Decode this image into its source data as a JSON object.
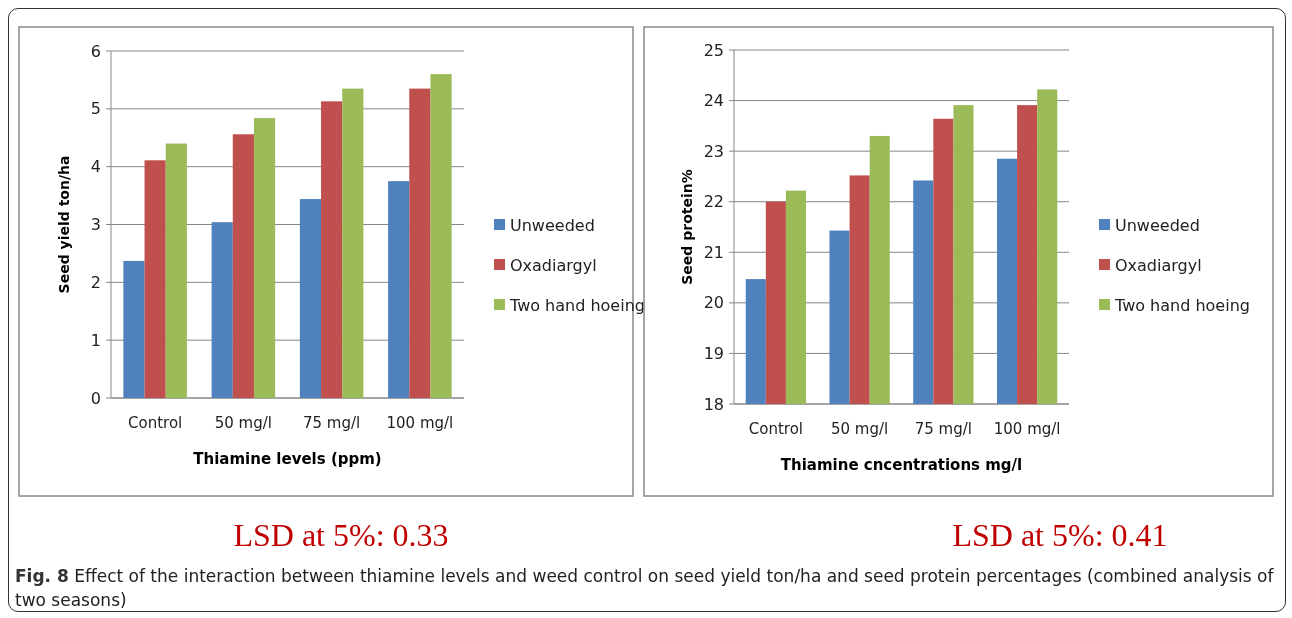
{
  "chart_data": [
    {
      "type": "bar",
      "xlabel": "Thiamine levels (ppm)",
      "ylabel": "Seed yield ton/ha",
      "categories": [
        "Control",
        "50 mg/l",
        "75 mg/l",
        "100 mg/l"
      ],
      "series": [
        {
          "name": "Unweeded",
          "color": "#4f81bd",
          "values": [
            2.37,
            3.04,
            3.44,
            3.75
          ]
        },
        {
          "name": "Oxadiargyl",
          "color": "#c0504d",
          "values": [
            4.11,
            4.56,
            5.13,
            5.35
          ]
        },
        {
          "name": "Two hand hoeing",
          "color": "#9bbb59",
          "values": [
            4.4,
            4.84,
            5.35,
            5.6
          ]
        }
      ],
      "ylim": [
        0,
        6
      ],
      "yticks": [
        0,
        1,
        2,
        3,
        4,
        5,
        6
      ],
      "grid": "y",
      "legend": "right",
      "annotations": [
        "LSD at 5%: 0.33"
      ]
    },
    {
      "type": "bar",
      "xlabel": "Thiamine cncentrations mg/l",
      "ylabel": "Seed protein%",
      "categories": [
        "Control",
        "50 mg/l",
        "75 mg/l",
        "100 mg/l"
      ],
      "series": [
        {
          "name": "Unweeded",
          "color": "#4f81bd",
          "values": [
            20.47,
            21.43,
            22.42,
            22.85
          ]
        },
        {
          "name": "Oxadiargyl",
          "color": "#c0504d",
          "values": [
            22.0,
            22.52,
            23.64,
            23.91
          ]
        },
        {
          "name": "Two hand hoeing",
          "color": "#9bbb59",
          "values": [
            22.22,
            23.3,
            23.91,
            24.22
          ]
        }
      ],
      "ylim": [
        18,
        25
      ],
      "yticks": [
        18,
        19,
        20,
        21,
        22,
        23,
        24,
        25
      ],
      "grid": "y",
      "legend": "right",
      "annotations": [
        "LSD at 5%: 0.41",
        "Fig. 8 Effect of the interaction between thiamine levels and weed control on seed yield ton/ha and seed protein percentages (combined analysis of two seasons)"
      ]
    }
  ]
}
